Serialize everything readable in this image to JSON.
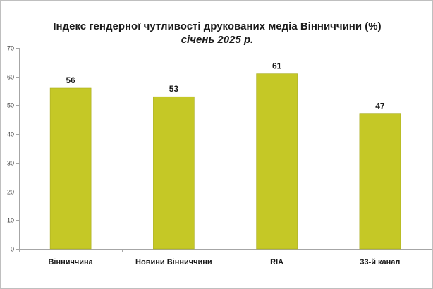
{
  "chart_data": {
    "type": "bar",
    "title": "Індекс гендерної чутливості друкованих медіа Вінниччини (%)",
    "subtitle": "січень 2025 р.",
    "categories": [
      "Вінниччина",
      "Новини Вінниччини",
      "RIA",
      "33-й канал"
    ],
    "values": [
      56,
      53,
      61,
      47
    ],
    "data_labels": [
      "56",
      "53",
      "61",
      "47"
    ],
    "ylim": [
      0,
      70
    ],
    "yticks": [
      "0",
      "10",
      "20",
      "30",
      "40",
      "50",
      "60",
      "70"
    ],
    "xlabel": "",
    "ylabel": "",
    "grid": false,
    "legend": "none",
    "bar_color": "#c5c826",
    "bar_edge_color": "#a9ac1c",
    "axis_color": "#a6a6a6"
  }
}
